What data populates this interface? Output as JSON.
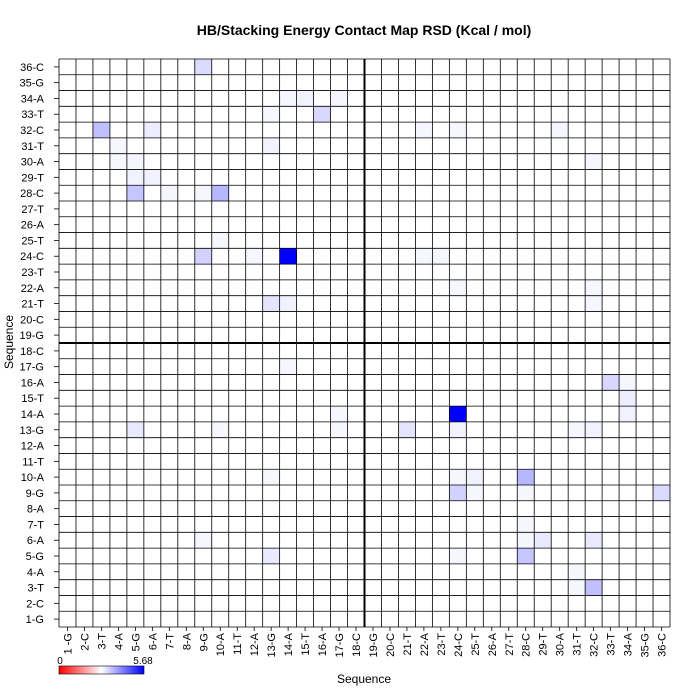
{
  "chart_data": {
    "type": "heatmap",
    "title": "HB/Stacking Energy Contact Map RSD (Kcal / mol)",
    "xlabel": "Sequence",
    "ylabel": "Sequence",
    "labels": [
      "1-G",
      "2-C",
      "3-T",
      "4-A",
      "5-G",
      "6-A",
      "7-T",
      "8-A",
      "9-G",
      "10-A",
      "11-T",
      "12-A",
      "13-G",
      "14-A",
      "15-T",
      "16-A",
      "17-G",
      "18-C",
      "19-G",
      "20-C",
      "21-T",
      "22-A",
      "23-T",
      "24-C",
      "25-T",
      "26-A",
      "27-T",
      "28-C",
      "29-T",
      "30-A",
      "31-T",
      "32-C",
      "33-T",
      "34-A",
      "35-G",
      "36-C"
    ],
    "x_tick_labels": [
      "1 -G",
      "2-C",
      "3-T",
      "4-A",
      "5-G",
      "6-A",
      "7-T",
      "8-A",
      "9-G",
      "10-A",
      "11-T",
      "12-A",
      "13-G",
      "14-A",
      "15-T",
      "16-A",
      "17-G",
      "18-C",
      "19-G",
      "20-C",
      "21-T",
      "22-A",
      "23-T",
      "24-C",
      "25-T",
      "26-A",
      "27-T",
      "28-C",
      "29-T",
      "30-A",
      "31-T",
      "32-C",
      "33-T",
      "34-A",
      "35-G",
      "36-C"
    ],
    "divider_after_index": 18,
    "colorbar": {
      "min_label": "0",
      "max_label": "5.68",
      "min": 0,
      "max": 5.68,
      "colors": [
        "#ff0000",
        "#ffffff",
        "#0000ff"
      ]
    },
    "cells": [
      {
        "row": "24-C",
        "col": "14-A",
        "value": 5.68
      },
      {
        "row": "14-A",
        "col": "24-C",
        "value": 5.68
      },
      {
        "row": "32-C",
        "col": "3-T",
        "value": 1.4
      },
      {
        "row": "3-T",
        "col": "32-C",
        "value": 1.4
      },
      {
        "row": "28-C",
        "col": "10-A",
        "value": 1.6
      },
      {
        "row": "10-A",
        "col": "28-C",
        "value": 1.6
      },
      {
        "row": "28-C",
        "col": "5-G",
        "value": 1.3
      },
      {
        "row": "5-G",
        "col": "28-C",
        "value": 1.3
      },
      {
        "row": "16-A",
        "col": "33-T",
        "value": 0.9
      },
      {
        "row": "33-T",
        "col": "16-A",
        "value": 0.9
      },
      {
        "row": "9-G",
        "col": "24-C",
        "value": 1.0
      },
      {
        "row": "24-C",
        "col": "9-G",
        "value": 1.0
      },
      {
        "row": "9-G",
        "col": "36-C",
        "value": 0.8
      },
      {
        "row": "36-C",
        "col": "9-G",
        "value": 0.8
      },
      {
        "row": "13-G",
        "col": "21-T",
        "value": 0.6
      },
      {
        "row": "21-T",
        "col": "13-G",
        "value": 0.6
      },
      {
        "row": "6-A",
        "col": "29-T",
        "value": 0.5
      },
      {
        "row": "29-T",
        "col": "6-A",
        "value": 0.5
      },
      {
        "row": "13-G",
        "col": "5-G",
        "value": 0.5
      },
      {
        "row": "5-G",
        "col": "13-G",
        "value": 0.5
      },
      {
        "row": "6-A",
        "col": "32-C",
        "value": 0.5
      },
      {
        "row": "32-C",
        "col": "6-A",
        "value": 0.4
      },
      {
        "row": "15-T",
        "col": "34-A",
        "value": 0.4
      },
      {
        "row": "34-A",
        "col": "15-T",
        "value": 0.3
      },
      {
        "row": "29-T",
        "col": "6-A",
        "value": 0.3
      },
      {
        "row": "30-A",
        "col": "4-A",
        "value": 0.2
      },
      {
        "row": "31-T",
        "col": "13-G",
        "value": 0.3
      },
      {
        "row": "34-A",
        "col": "14-A",
        "value": 0.2
      },
      {
        "row": "32-C",
        "col": "24-C",
        "value": 0.2
      },
      {
        "row": "22-A",
        "col": "24-C",
        "value": 0.2
      },
      {
        "row": "22-A",
        "col": "32-C",
        "value": 0.2
      },
      {
        "row": "30-A",
        "col": "32-C",
        "value": 0.2
      },
      {
        "row": "24-C",
        "col": "23-T",
        "value": 0.2
      },
      {
        "row": "14-A",
        "col": "34-A",
        "value": 0.3
      },
      {
        "row": "13-G",
        "col": "32-C",
        "value": 0.3
      },
      {
        "row": "13-G",
        "col": "31-T",
        "value": 0.2
      },
      {
        "row": "13-G",
        "col": "10-A",
        "value": 0.2
      },
      {
        "row": "10-A",
        "col": "25-T",
        "value": 0.3
      },
      {
        "row": "10-A",
        "col": "13-G",
        "value": 0.2
      },
      {
        "row": "9-G",
        "col": "25-T",
        "value": 0.2
      },
      {
        "row": "9-G",
        "col": "28-C",
        "value": 0.2
      },
      {
        "row": "7-T",
        "col": "28-C",
        "value": 0.2
      },
      {
        "row": "6-A",
        "col": "9-G",
        "value": 0.2
      },
      {
        "row": "6-A",
        "col": "28-C",
        "value": 0.2
      },
      {
        "row": "5-G",
        "col": "24-C",
        "value": 0.2
      },
      {
        "row": "4-A",
        "col": "31-T",
        "value": 0.2
      },
      {
        "row": "3-T",
        "col": "31-T",
        "value": 0.2
      },
      {
        "row": "17-G",
        "col": "14-A",
        "value": 0.2
      },
      {
        "row": "21-T",
        "col": "14-A",
        "value": 0.3
      },
      {
        "row": "25-T",
        "col": "10-A",
        "value": 0.2
      },
      {
        "row": "24-C",
        "col": "12-A",
        "value": 0.2
      },
      {
        "row": "24-C",
        "col": "22-A",
        "value": 0.2
      },
      {
        "row": "28-C",
        "col": "7-T",
        "value": 0.2
      },
      {
        "row": "28-C",
        "col": "9-G",
        "value": 0.2
      },
      {
        "row": "29-T",
        "col": "5-G",
        "value": 0.3
      },
      {
        "row": "31-T",
        "col": "4-A",
        "value": 0.2
      },
      {
        "row": "32-C",
        "col": "22-A",
        "value": 0.2
      },
      {
        "row": "32-C",
        "col": "30-A",
        "value": 0.2
      },
      {
        "row": "33-T",
        "col": "13-G",
        "value": 0.2
      },
      {
        "row": "34-A",
        "col": "17-G",
        "value": 0.2
      },
      {
        "row": "30-A",
        "col": "5-G",
        "value": 0.2
      },
      {
        "row": "21-T",
        "col": "32-C",
        "value": 0.2
      },
      {
        "row": "13-G",
        "col": "24-C",
        "value": 0.3
      },
      {
        "row": "13-G",
        "col": "17-G",
        "value": 0.2
      },
      {
        "row": "10-A",
        "col": "24-C",
        "value": 0.2
      },
      {
        "row": "16-A",
        "col": "34-A",
        "value": 0.2
      },
      {
        "row": "14-A",
        "col": "17-G",
        "value": 0.2
      }
    ]
  }
}
